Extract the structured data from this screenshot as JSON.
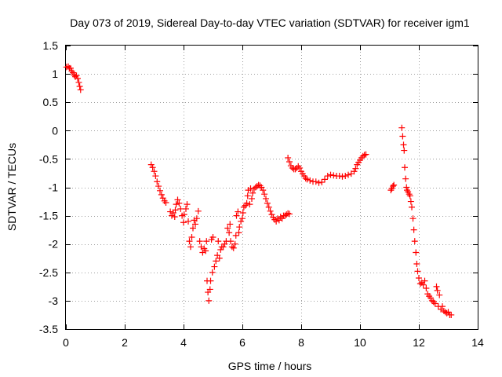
{
  "chart_data": {
    "type": "scatter",
    "title": "Day 073 of 2019, Sidereal Day-to-day VTEC variation (SDTVAR) for receiver igm1",
    "xlabel": "GPS time / hours",
    "ylabel": "SDTVAR / TECUs",
    "xlim": [
      0,
      14
    ],
    "ylim": [
      -3.5,
      1.5
    ],
    "xticks": [
      0,
      2,
      4,
      6,
      8,
      10,
      12,
      14
    ],
    "xtick_labels": [
      "0",
      "2",
      "4",
      "6",
      "8",
      "10",
      "12",
      "14"
    ],
    "yticks": [
      1.5,
      1,
      0.5,
      0,
      -0.5,
      -1,
      -1.5,
      -2,
      -2.5,
      -3,
      -3.5
    ],
    "ytick_labels": [
      "1.5",
      "1",
      "0.5",
      "0",
      "-0.5",
      "-1",
      "-1.5",
      "-2",
      "-2.5",
      "-3",
      "-3.5"
    ],
    "grid": true,
    "marker": "+",
    "color": "#ff0000",
    "series": [
      {
        "name": "SDTVAR",
        "points": [
          [
            0.02,
            1.12
          ],
          [
            0.08,
            1.13
          ],
          [
            0.12,
            1.1
          ],
          [
            0.16,
            1.1
          ],
          [
            0.2,
            1.05
          ],
          [
            0.24,
            1.02
          ],
          [
            0.28,
            0.98
          ],
          [
            0.32,
            0.95
          ],
          [
            0.36,
            0.97
          ],
          [
            0.4,
            0.92
          ],
          [
            0.44,
            0.85
          ],
          [
            0.47,
            0.78
          ],
          [
            0.5,
            0.72
          ],
          [
            2.9,
            -0.6
          ],
          [
            2.95,
            -0.65
          ],
          [
            3.0,
            -0.72
          ],
          [
            3.05,
            -0.8
          ],
          [
            3.1,
            -0.9
          ],
          [
            3.15,
            -0.98
          ],
          [
            3.2,
            -1.06
          ],
          [
            3.25,
            -1.13
          ],
          [
            3.3,
            -1.19
          ],
          [
            3.35,
            -1.24
          ],
          [
            3.4,
            -1.27
          ],
          [
            3.55,
            -1.43
          ],
          [
            3.6,
            -1.5
          ],
          [
            3.65,
            -1.45
          ],
          [
            3.7,
            -1.52
          ],
          [
            3.72,
            -1.4
          ],
          [
            3.75,
            -1.3
          ],
          [
            3.8,
            -1.22
          ],
          [
            3.85,
            -1.28
          ],
          [
            3.9,
            -1.38
          ],
          [
            3.95,
            -1.5
          ],
          [
            4.0,
            -1.62
          ],
          [
            4.02,
            -1.48
          ],
          [
            4.08,
            -1.38
          ],
          [
            4.12,
            -1.3
          ],
          [
            4.16,
            -1.6
          ],
          [
            4.2,
            -1.95
          ],
          [
            4.24,
            -2.05
          ],
          [
            4.28,
            -1.88
          ],
          [
            4.32,
            -1.72
          ],
          [
            4.36,
            -1.58
          ],
          [
            4.4,
            -1.65
          ],
          [
            4.45,
            -1.55
          ],
          [
            4.5,
            -1.42
          ],
          [
            4.55,
            -1.95
          ],
          [
            4.6,
            -2.05
          ],
          [
            4.65,
            -2.15
          ],
          [
            4.7,
            -2.08
          ],
          [
            4.75,
            -2.12
          ],
          [
            4.78,
            -1.95
          ],
          [
            4.8,
            -2.65
          ],
          [
            4.83,
            -2.85
          ],
          [
            4.86,
            -3.0
          ],
          [
            4.9,
            -2.8
          ],
          [
            4.92,
            -2.65
          ],
          [
            4.95,
            -1.92
          ],
          [
            4.98,
            -2.5
          ],
          [
            5.0,
            -1.88
          ],
          [
            5.05,
            -2.4
          ],
          [
            5.1,
            -2.3
          ],
          [
            5.15,
            -2.2
          ],
          [
            5.18,
            -1.95
          ],
          [
            5.22,
            -2.25
          ],
          [
            5.26,
            -2.1
          ],
          [
            5.3,
            -2.05
          ],
          [
            5.35,
            -2.05
          ],
          [
            5.4,
            -2.0
          ],
          [
            5.45,
            -1.95
          ],
          [
            5.5,
            -1.72
          ],
          [
            5.55,
            -1.8
          ],
          [
            5.58,
            -1.65
          ],
          [
            5.6,
            -1.95
          ],
          [
            5.65,
            -2.05
          ],
          [
            5.7,
            -2.07
          ],
          [
            5.75,
            -2.0
          ],
          [
            5.78,
            -1.85
          ],
          [
            5.8,
            -1.5
          ],
          [
            5.85,
            -1.43
          ],
          [
            5.88,
            -1.8
          ],
          [
            5.9,
            -1.7
          ],
          [
            5.95,
            -1.6
          ],
          [
            6.0,
            -1.55
          ],
          [
            6.02,
            -1.45
          ],
          [
            6.05,
            -1.35
          ],
          [
            6.1,
            -1.32
          ],
          [
            6.15,
            -1.28
          ],
          [
            6.18,
            -1.15
          ],
          [
            6.2,
            -1.05
          ],
          [
            6.25,
            -1.3
          ],
          [
            6.28,
            -1.02
          ],
          [
            6.32,
            -1.2
          ],
          [
            6.35,
            -1.1
          ],
          [
            6.4,
            -1.03
          ],
          [
            6.45,
            -1.0
          ],
          [
            6.5,
            -0.98
          ],
          [
            6.55,
            -0.96
          ],
          [
            6.6,
            -0.97
          ],
          [
            6.65,
            -1.0
          ],
          [
            6.7,
            -1.05
          ],
          [
            6.75,
            -1.12
          ],
          [
            6.8,
            -1.2
          ],
          [
            6.85,
            -1.28
          ],
          [
            6.9,
            -1.35
          ],
          [
            6.95,
            -1.42
          ],
          [
            7.0,
            -1.48
          ],
          [
            7.05,
            -1.53
          ],
          [
            7.1,
            -1.57
          ],
          [
            7.15,
            -1.6
          ],
          [
            7.2,
            -1.55
          ],
          [
            7.25,
            -1.58
          ],
          [
            7.3,
            -1.52
          ],
          [
            7.35,
            -1.55
          ],
          [
            7.4,
            -1.5
          ],
          [
            7.45,
            -1.5
          ],
          [
            7.5,
            -1.48
          ],
          [
            7.55,
            -1.46
          ],
          [
            7.6,
            -1.47
          ],
          [
            7.55,
            -0.48
          ],
          [
            7.6,
            -0.55
          ],
          [
            7.65,
            -0.62
          ],
          [
            7.7,
            -0.66
          ],
          [
            7.75,
            -0.68
          ],
          [
            7.8,
            -0.68
          ],
          [
            7.85,
            -0.66
          ],
          [
            7.9,
            -0.63
          ],
          [
            7.95,
            -0.66
          ],
          [
            8.0,
            -0.72
          ],
          [
            8.05,
            -0.76
          ],
          [
            8.1,
            -0.8
          ],
          [
            8.15,
            -0.84
          ],
          [
            8.2,
            -0.86
          ],
          [
            8.3,
            -0.88
          ],
          [
            8.4,
            -0.9
          ],
          [
            8.5,
            -0.9
          ],
          [
            8.6,
            -0.92
          ],
          [
            8.7,
            -0.91
          ],
          [
            8.8,
            -0.86
          ],
          [
            8.9,
            -0.8
          ],
          [
            9.0,
            -0.78
          ],
          [
            9.1,
            -0.79
          ],
          [
            9.2,
            -0.8
          ],
          [
            9.3,
            -0.8
          ],
          [
            9.4,
            -0.81
          ],
          [
            9.5,
            -0.8
          ],
          [
            9.6,
            -0.78
          ],
          [
            9.7,
            -0.76
          ],
          [
            9.8,
            -0.72
          ],
          [
            9.85,
            -0.67
          ],
          [
            9.9,
            -0.6
          ],
          [
            9.95,
            -0.56
          ],
          [
            10.0,
            -0.52
          ],
          [
            10.05,
            -0.48
          ],
          [
            10.1,
            -0.45
          ],
          [
            10.15,
            -0.43
          ],
          [
            10.2,
            -0.42
          ],
          [
            11.05,
            -1.05
          ],
          [
            11.08,
            -1.02
          ],
          [
            11.12,
            -0.98
          ],
          [
            11.15,
            -0.96
          ],
          [
            11.42,
            0.05
          ],
          [
            11.45,
            -0.1
          ],
          [
            11.48,
            -0.25
          ],
          [
            11.5,
            -0.35
          ],
          [
            11.52,
            -0.65
          ],
          [
            11.55,
            -0.85
          ],
          [
            11.58,
            -1.0
          ],
          [
            11.6,
            -1.05
          ],
          [
            11.63,
            -1.08
          ],
          [
            11.67,
            -1.12
          ],
          [
            11.7,
            -1.15
          ],
          [
            11.73,
            -1.25
          ],
          [
            11.76,
            -1.35
          ],
          [
            11.8,
            -1.55
          ],
          [
            11.83,
            -1.75
          ],
          [
            11.86,
            -1.95
          ],
          [
            11.9,
            -2.15
          ],
          [
            11.93,
            -2.35
          ],
          [
            11.96,
            -2.48
          ],
          [
            12.0,
            -2.6
          ],
          [
            12.05,
            -2.7
          ],
          [
            12.1,
            -2.68
          ],
          [
            12.15,
            -2.72
          ],
          [
            12.2,
            -2.65
          ],
          [
            12.25,
            -2.78
          ],
          [
            12.3,
            -2.88
          ],
          [
            12.35,
            -2.92
          ],
          [
            12.4,
            -2.95
          ],
          [
            12.45,
            -3.0
          ],
          [
            12.5,
            -3.02
          ],
          [
            12.55,
            -3.05
          ],
          [
            12.6,
            -2.75
          ],
          [
            12.63,
            -2.82
          ],
          [
            12.66,
            -3.1
          ],
          [
            12.7,
            -2.9
          ],
          [
            12.75,
            -3.15
          ],
          [
            12.8,
            -3.1
          ],
          [
            12.85,
            -3.18
          ],
          [
            12.9,
            -3.2
          ],
          [
            12.95,
            -3.22
          ],
          [
            13.0,
            -3.2
          ],
          [
            13.05,
            -3.25
          ],
          [
            13.1,
            -3.25
          ]
        ]
      }
    ]
  }
}
